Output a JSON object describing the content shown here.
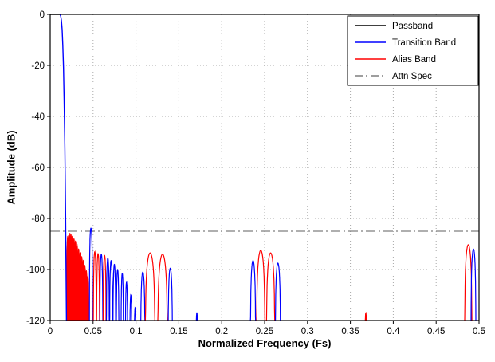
{
  "chart_data": {
    "type": "line",
    "title": "",
    "xlabel": "Normalized Frequency (Fs)",
    "ylabel": "Amplitude (dB)",
    "xlim": [
      0,
      0.5
    ],
    "ylim": [
      -120,
      0
    ],
    "grid": true,
    "attn_spec_db": -85,
    "colors": {
      "passband": "#000000",
      "transition": "#0000ff",
      "alias": "#ff0000",
      "attn_spec": "#7f7f7f",
      "grid": "#a8a8a8"
    },
    "xticks": [
      [
        0,
        "0"
      ],
      [
        0.05,
        "0.05"
      ],
      [
        0.1,
        "0.1"
      ],
      [
        0.15,
        "0.15"
      ],
      [
        0.2,
        "0.2"
      ],
      [
        0.25,
        "0.25"
      ],
      [
        0.3,
        "0.3"
      ],
      [
        0.35,
        "0.35"
      ],
      [
        0.4,
        "0.4"
      ],
      [
        0.45,
        "0.45"
      ],
      [
        0.5,
        "0.5"
      ]
    ],
    "yticks": [
      [
        0,
        "0"
      ],
      [
        -20,
        "-20"
      ],
      [
        -40,
        "-40"
      ],
      [
        -60,
        "-60"
      ],
      [
        -80,
        "-80"
      ],
      [
        -100,
        "-100"
      ],
      [
        -120,
        "-120"
      ]
    ],
    "legend": {
      "position": "top-right",
      "entries": [
        {
          "label": "Passband",
          "color": "#000000",
          "style": "solid"
        },
        {
          "label": "Transition Band",
          "color": "#0000ff",
          "style": "solid"
        },
        {
          "label": "Alias Band",
          "color": "#ff0000",
          "style": "solid"
        },
        {
          "label": "Attn Spec",
          "color": "#7f7f7f",
          "style": "dashdot"
        }
      ]
    },
    "segments": [
      {
        "band": "passband",
        "points": [
          [
            0.0005,
            0
          ],
          [
            0.0115,
            0
          ]
        ]
      },
      {
        "band": "transition",
        "points": [
          [
            0.0115,
            0
          ],
          [
            0.0123,
            -0.7
          ],
          [
            0.0131,
            -2.5
          ],
          [
            0.0139,
            -6
          ],
          [
            0.0147,
            -12
          ],
          [
            0.0155,
            -21
          ],
          [
            0.0163,
            -34
          ],
          [
            0.0171,
            -52
          ],
          [
            0.0179,
            -78
          ],
          [
            0.0186,
            -105
          ],
          [
            0.019,
            -120
          ]
        ]
      }
    ],
    "lobes": [
      {
        "band": "alias",
        "c": 0.0205,
        "hw": 0.0013,
        "p": -87,
        "fill": true
      },
      {
        "band": "alias",
        "c": 0.0223,
        "hw": 0.0013,
        "p": -85.8,
        "fill": true
      },
      {
        "band": "alias",
        "c": 0.0241,
        "hw": 0.0013,
        "p": -86.2,
        "fill": true
      },
      {
        "band": "alias",
        "c": 0.0259,
        "hw": 0.0013,
        "p": -87,
        "fill": true
      },
      {
        "band": "alias",
        "c": 0.0277,
        "hw": 0.0013,
        "p": -88,
        "fill": true
      },
      {
        "band": "alias",
        "c": 0.0295,
        "hw": 0.0013,
        "p": -89,
        "fill": true
      },
      {
        "band": "alias",
        "c": 0.0313,
        "hw": 0.0013,
        "p": -90.5,
        "fill": true
      },
      {
        "band": "alias",
        "c": 0.0331,
        "hw": 0.0013,
        "p": -92,
        "fill": true
      },
      {
        "band": "alias",
        "c": 0.0349,
        "hw": 0.0013,
        "p": -93.5,
        "fill": true
      },
      {
        "band": "alias",
        "c": 0.0367,
        "hw": 0.0013,
        "p": -95,
        "fill": true
      },
      {
        "band": "alias",
        "c": 0.0385,
        "hw": 0.0013,
        "p": -96.5,
        "fill": true
      },
      {
        "band": "alias",
        "c": 0.0403,
        "hw": 0.0013,
        "p": -98.5,
        "fill": true
      },
      {
        "band": "alias",
        "c": 0.0421,
        "hw": 0.0013,
        "p": -100.5,
        "fill": true
      },
      {
        "band": "alias",
        "c": 0.0439,
        "hw": 0.0013,
        "p": -103,
        "fill": true
      },
      {
        "band": "transition",
        "c": 0.0475,
        "hw": 0.0018,
        "p": -83.8,
        "fill": false
      },
      {
        "band": "alias",
        "c": 0.052,
        "hw": 0.0017,
        "p": -93,
        "fill": false
      },
      {
        "band": "alias",
        "c": 0.0558,
        "hw": 0.0017,
        "p": -93.8,
        "fill": false
      },
      {
        "band": "transition",
        "c": 0.0596,
        "hw": 0.0017,
        "p": -94,
        "fill": false
      },
      {
        "band": "alias",
        "c": 0.0634,
        "hw": 0.0017,
        "p": -94.5,
        "fill": false
      },
      {
        "band": "transition",
        "c": 0.0672,
        "hw": 0.0017,
        "p": -95.5,
        "fill": false
      },
      {
        "band": "transition",
        "c": 0.071,
        "hw": 0.0017,
        "p": -96.5,
        "fill": false
      },
      {
        "band": "transition",
        "c": 0.0748,
        "hw": 0.0016,
        "p": -98,
        "fill": false
      },
      {
        "band": "transition",
        "c": 0.0786,
        "hw": 0.0015,
        "p": -100,
        "fill": false
      },
      {
        "band": "transition",
        "c": 0.084,
        "hw": 0.0014,
        "p": -101.5,
        "fill": false
      },
      {
        "band": "transition",
        "c": 0.089,
        "hw": 0.0013,
        "p": -105,
        "fill": false
      },
      {
        "band": "transition",
        "c": 0.094,
        "hw": 0.0012,
        "p": -110,
        "fill": false
      },
      {
        "band": "transition",
        "c": 0.099,
        "hw": 0.0011,
        "p": -115,
        "fill": false
      },
      {
        "band": "transition",
        "c": 0.108,
        "hw": 0.0025,
        "p": -101,
        "fill": false
      },
      {
        "band": "alias",
        "c": 0.1165,
        "hw": 0.0055,
        "p": -93.5,
        "fill": false
      },
      {
        "band": "alias",
        "c": 0.131,
        "hw": 0.0055,
        "p": -94,
        "fill": false
      },
      {
        "band": "transition",
        "c": 0.14,
        "hw": 0.0025,
        "p": -99.5,
        "fill": false
      },
      {
        "band": "transition",
        "c": 0.171,
        "hw": 0.0012,
        "p": -117,
        "fill": false
      },
      {
        "band": "transition",
        "c": 0.2365,
        "hw": 0.003,
        "p": -96.5,
        "fill": false
      },
      {
        "band": "alias",
        "c": 0.2455,
        "hw": 0.0048,
        "p": -92.5,
        "fill": false
      },
      {
        "band": "alias",
        "c": 0.257,
        "hw": 0.0048,
        "p": -93.5,
        "fill": false
      },
      {
        "band": "transition",
        "c": 0.2655,
        "hw": 0.003,
        "p": -97.5,
        "fill": false
      },
      {
        "band": "alias",
        "c": 0.368,
        "hw": 0.0012,
        "p": -117,
        "fill": false
      },
      {
        "band": "alias",
        "c": 0.4875,
        "hw": 0.0042,
        "p": -90.3,
        "fill": false
      },
      {
        "band": "transition",
        "c": 0.4935,
        "hw": 0.0028,
        "p": -92,
        "fill": false
      }
    ]
  }
}
